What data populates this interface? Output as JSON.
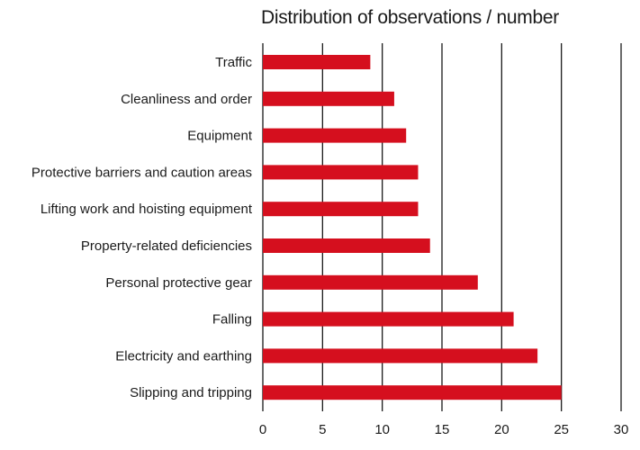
{
  "chart_data": {
    "type": "bar",
    "orientation": "horizontal",
    "title": "Distribution of observations / number",
    "xlabel": "",
    "ylabel": "",
    "categories": [
      "Traffic",
      "Cleanliness and order",
      "Equipment",
      "Protective barriers and caution areas",
      "Lifting work and hoisting equipment",
      "Property-related deficiencies",
      "Personal protective gear",
      "Falling",
      "Electricity and earthing",
      "Slipping and tripping"
    ],
    "values": [
      9,
      11,
      12,
      13,
      13,
      14,
      18,
      21,
      23,
      25
    ],
    "xlim": [
      0,
      30
    ],
    "xticks": [
      "0",
      "5",
      "10",
      "15",
      "20",
      "25",
      "30"
    ],
    "grid": "vertical",
    "legend": "none",
    "bar_color": "#d50f1e",
    "grid_color": "#1a1a1a"
  }
}
